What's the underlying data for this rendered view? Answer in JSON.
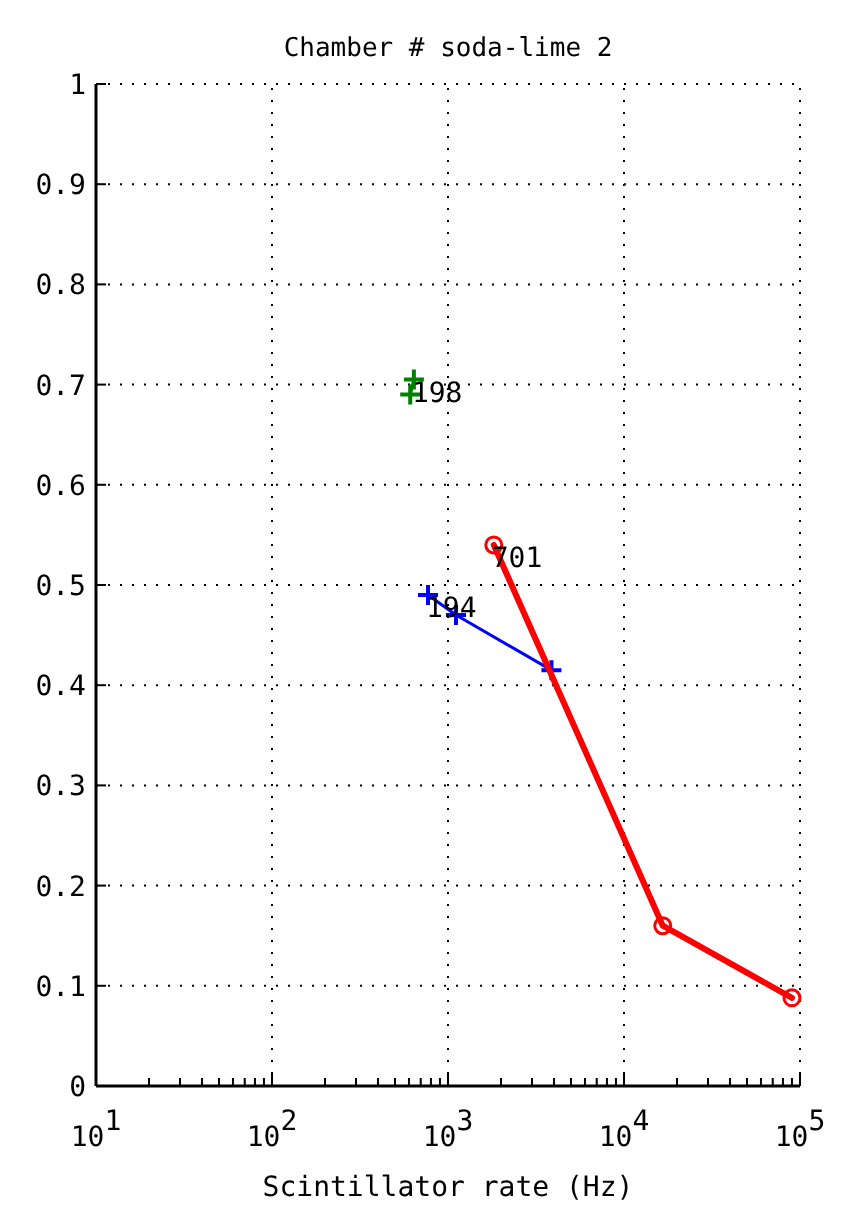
{
  "chart_data": {
    "type": "line",
    "title": "Chamber # soda-lime 2",
    "xlabel": "Scintillator rate (Hz)",
    "log": "x",
    "xlim": [
      10,
      100000
    ],
    "xticks": [
      {
        "value": 10,
        "label": "10$^{1}$"
      },
      {
        "value": 20,
        "label": null
      },
      {
        "value": 30,
        "label": null
      },
      {
        "value": 40,
        "label": null
      },
      {
        "value": 50,
        "label": null
      },
      {
        "value": 60,
        "label": null
      },
      {
        "value": 70,
        "label": null
      },
      {
        "value": 80,
        "label": null
      },
      {
        "value": 90,
        "label": null
      },
      {
        "value": 100,
        "label": "10$^{2}$"
      },
      {
        "value": 200,
        "label": null
      },
      {
        "value": 300,
        "label": null
      },
      {
        "value": 400,
        "label": null
      },
      {
        "value": 500,
        "label": null
      },
      {
        "value": 600,
        "label": null
      },
      {
        "value": 700,
        "label": null
      },
      {
        "value": 800,
        "label": null
      },
      {
        "value": 900,
        "label": null
      },
      {
        "value": 1000,
        "label": "10$^{3}$"
      },
      {
        "value": 2000,
        "label": null
      },
      {
        "value": 3000,
        "label": null
      },
      {
        "value": 4000,
        "label": null
      },
      {
        "value": 5000,
        "label": null
      },
      {
        "value": 6000,
        "label": null
      },
      {
        "value": 7000,
        "label": null
      },
      {
        "value": 8000,
        "label": null
      },
      {
        "value": 9000,
        "label": null
      },
      {
        "value": 10000,
        "label": "10$^{4}$"
      },
      {
        "value": 20000,
        "label": null
      },
      {
        "value": 30000,
        "label": null
      },
      {
        "value": 40000,
        "label": null
      },
      {
        "value": 50000,
        "label": null
      },
      {
        "value": 60000,
        "label": null
      },
      {
        "value": 70000,
        "label": null
      },
      {
        "value": 80000,
        "label": null
      },
      {
        "value": 90000,
        "label": null
      },
      {
        "value": 100000,
        "label": "10$^{5}$"
      }
    ],
    "ylim": [
      0,
      1
    ],
    "yticks": [
      0,
      0.1,
      0.2,
      0.3,
      0.4,
      0.5,
      0.6,
      0.7,
      0.8,
      0.9,
      1
    ],
    "grid": true,
    "line_style": "solid",
    "series": [
      {
        "color": "#008000",
        "marker": "cross",
        "x": [
          640,
          610
        ],
        "values": [
          0.705,
          0.69
        ]
      },
      {
        "color": "#0000ff",
        "marker": "cross",
        "x": [
          770,
          1110,
          3870
        ],
        "values": [
          0.49,
          0.47,
          0.415
        ]
      },
      {
        "color": "#ff0000",
        "marker": "circle",
        "x": [
          1820,
          16600,
          90000
        ],
        "values": [
          0.54,
          0.16,
          0.088
        ]
      }
    ],
    "annotations": [
      {
        "text": "198",
        "x": 640,
        "y": 0.705
      },
      {
        "text": "194",
        "x": 770,
        "y": 0.49
      },
      {
        "text": "701",
        "x": 1820,
        "y": 0.54
      }
    ]
  }
}
